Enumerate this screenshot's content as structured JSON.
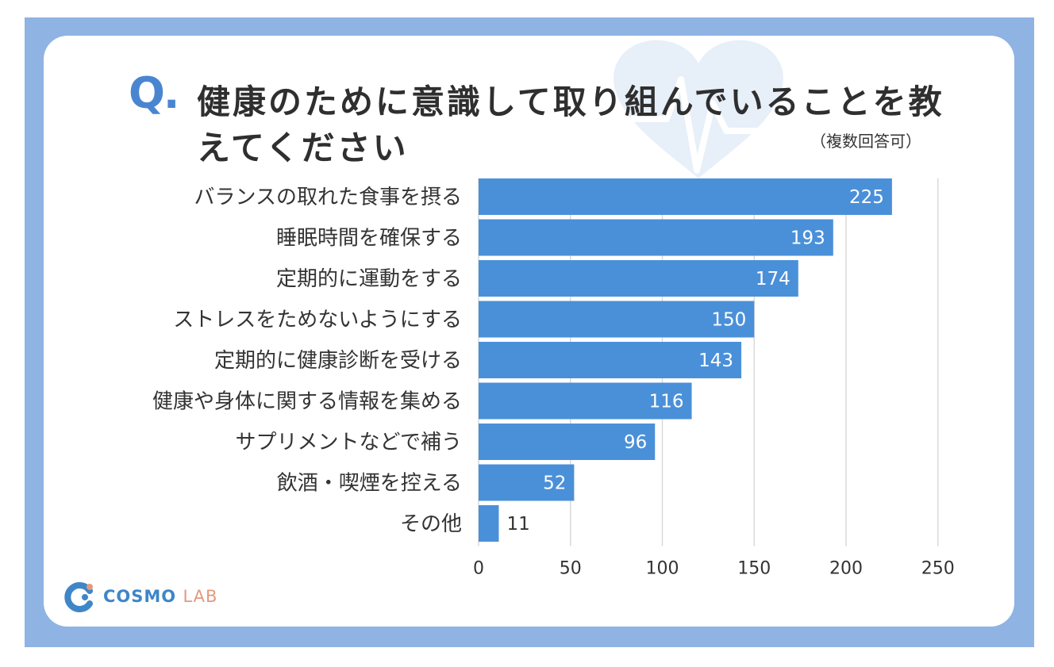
{
  "title_mark": "Q.",
  "title": "健康のために意識して取り組んでいることを教えてください",
  "subtitle": "（複数回答可）",
  "logo": {
    "primary": "COSMO",
    "secondary": "LAB"
  },
  "colors": {
    "bar": "#4a90d9",
    "frame": "#8fb3e3",
    "q_mark": "#4a86d0",
    "grid": "#d9d9d9"
  },
  "chart_data": {
    "type": "bar",
    "orientation": "horizontal",
    "categories": [
      "バランスの取れた食事を摂る",
      "睡眠時間を確保する",
      "定期的に運動をする",
      "ストレスをためないようにする",
      "定期的に健康診断を受ける",
      "健康や身体に関する情報を集める",
      "サプリメントなどで補う",
      "飲酒・喫煙を控える",
      "その他"
    ],
    "values": [
      225,
      193,
      174,
      150,
      143,
      116,
      96,
      52,
      11
    ],
    "xlim": [
      0,
      250
    ],
    "xticks": [
      0,
      50,
      100,
      150,
      200,
      250
    ],
    "grid": true,
    "data_labels": true
  }
}
